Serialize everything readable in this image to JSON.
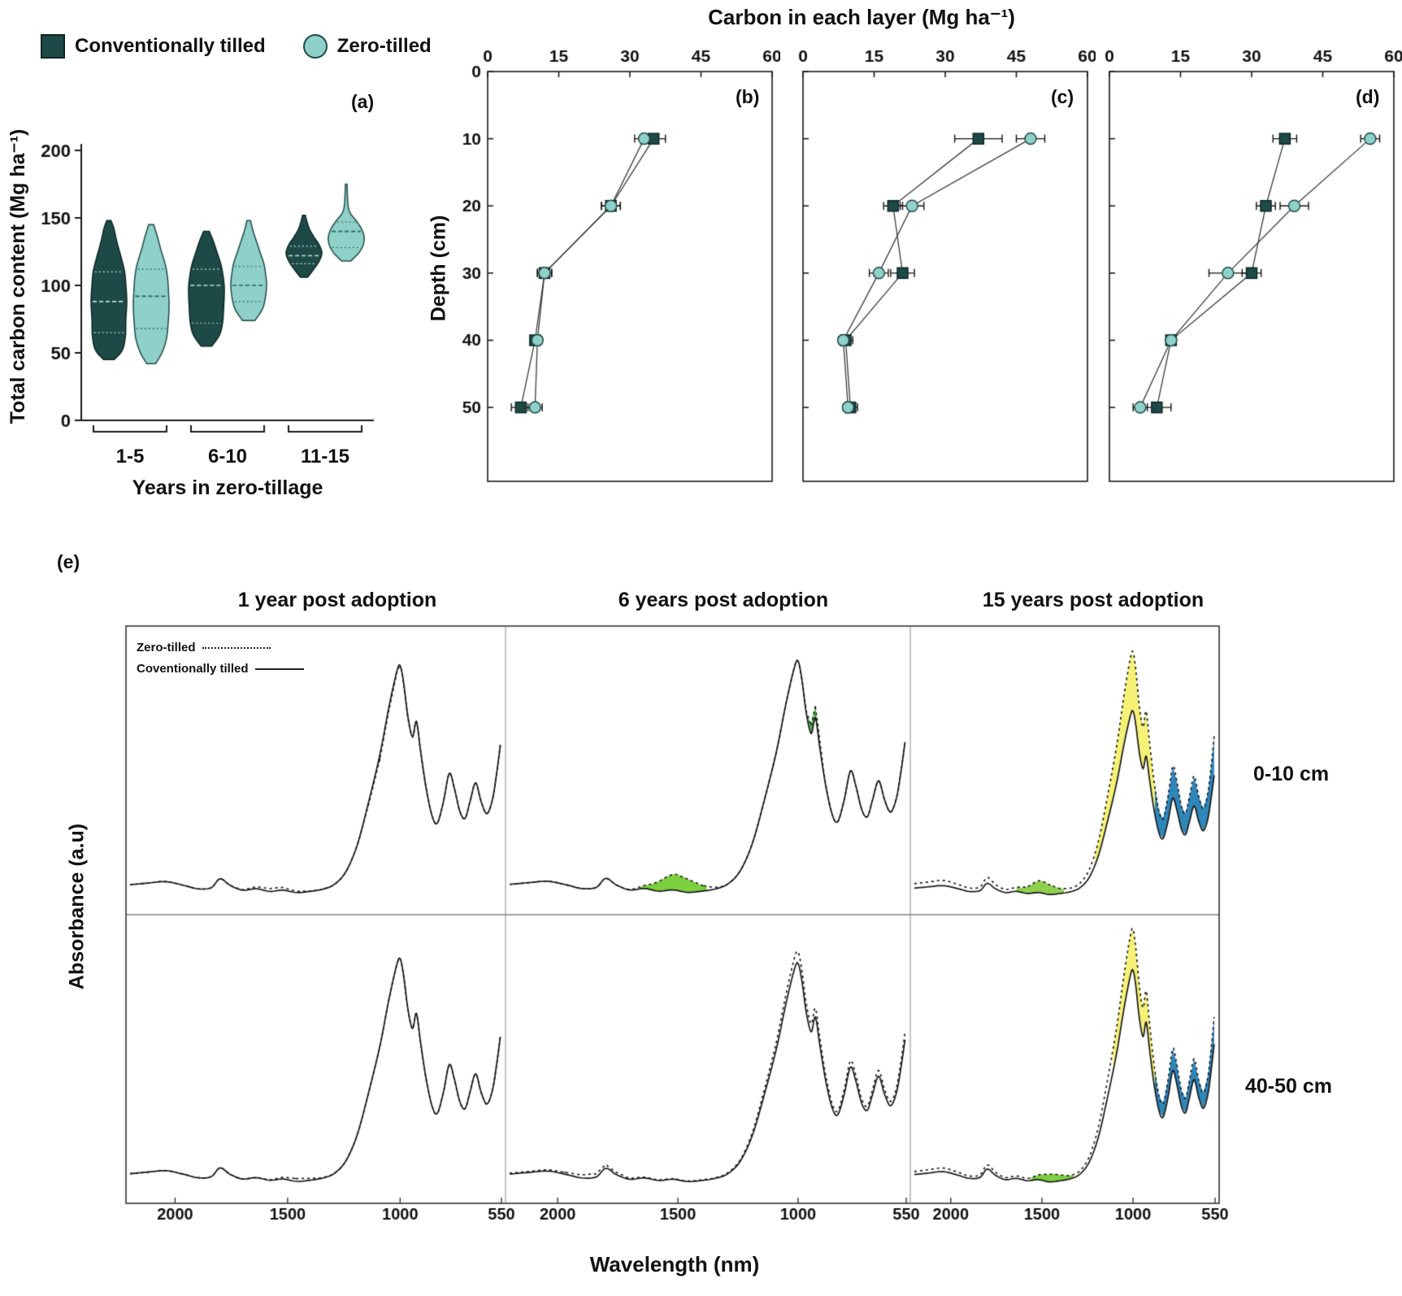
{
  "legend": {
    "ct": "Conventionally tilled",
    "zt": "Zero-tilled"
  },
  "top_title": "Carbon in each layer (Mg ha⁻¹)",
  "colors": {
    "series": {
      "ct": {
        "fill": "#1d4a46",
        "edge": "#0d2523",
        "dash": "#c3ddd9"
      },
      "zt": {
        "fill": "#8fd0c8",
        "edge": "#1d4a46",
        "dash": "#2b5f59"
      }
    },
    "axis": "#1a1a1a",
    "spectra_line": "#181818"
  },
  "chart_data": [
    {
      "id": "violin",
      "type": "violin",
      "panel": "(a)",
      "ylabel": "Total carbon content (Mg ha⁻¹)",
      "xlabel": "Years in zero-tillage",
      "ylim": [
        0,
        200
      ],
      "yticks": [
        0,
        50,
        100,
        150,
        200
      ],
      "groups": [
        {
          "label": "1-5",
          "violins": [
            {
              "series": "ct",
              "quartiles": [
                65,
                88,
                110
              ],
              "profile": [
                [
                  45,
                  0.3
                ],
                [
                  52,
                  0.75
                ],
                [
                  62,
                  0.92
                ],
                [
                  75,
                  0.95
                ],
                [
                  88,
                  1
                ],
                [
                  100,
                  0.95
                ],
                [
                  110,
                  0.88
                ],
                [
                  120,
                  0.7
                ],
                [
                  132,
                  0.45
                ],
                [
                  142,
                  0.28
                ],
                [
                  148,
                  0.12
                ]
              ]
            },
            {
              "series": "zt",
              "quartiles": [
                68,
                92,
                112
              ],
              "profile": [
                [
                  42,
                  0.25
                ],
                [
                  50,
                  0.6
                ],
                [
                  60,
                  0.85
                ],
                [
                  72,
                  0.95
                ],
                [
                  85,
                  1
                ],
                [
                  95,
                  0.97
                ],
                [
                  105,
                  0.92
                ],
                [
                  115,
                  0.8
                ],
                [
                  126,
                  0.55
                ],
                [
                  136,
                  0.35
                ],
                [
                  145,
                  0.14
                ]
              ]
            }
          ]
        },
        {
          "label": "6-10",
          "violins": [
            {
              "series": "ct",
              "quartiles": [
                72,
                100,
                112
              ],
              "profile": [
                [
                  55,
                  0.3
                ],
                [
                  63,
                  0.72
                ],
                [
                  72,
                  0.9
                ],
                [
                  85,
                  0.97
                ],
                [
                  98,
                  1
                ],
                [
                  108,
                  0.92
                ],
                [
                  116,
                  0.8
                ],
                [
                  125,
                  0.58
                ],
                [
                  133,
                  0.38
                ],
                [
                  140,
                  0.16
                ]
              ]
            },
            {
              "series": "zt",
              "quartiles": [
                88,
                100,
                114
              ],
              "profile": [
                [
                  74,
                  0.35
                ],
                [
                  82,
                  0.75
                ],
                [
                  90,
                  0.92
                ],
                [
                  100,
                  1
                ],
                [
                  108,
                  0.95
                ],
                [
                  116,
                  0.85
                ],
                [
                  124,
                  0.65
                ],
                [
                  132,
                  0.45
                ],
                [
                  140,
                  0.25
                ],
                [
                  148,
                  0.1
                ]
              ]
            }
          ]
        },
        {
          "label": "11-15",
          "violins": [
            {
              "series": "ct",
              "quartiles": [
                116,
                122,
                129
              ],
              "profile": [
                [
                  106,
                  0.2
                ],
                [
                  112,
                  0.55
                ],
                [
                  118,
                  0.85
                ],
                [
                  124,
                  1
                ],
                [
                  130,
                  0.85
                ],
                [
                  136,
                  0.55
                ],
                [
                  142,
                  0.3
                ],
                [
                  148,
                  0.15
                ],
                [
                  152,
                  0.08
                ]
              ]
            },
            {
              "series": "zt",
              "quartiles": [
                128,
                140,
                147
              ],
              "profile": [
                [
                  118,
                  0.25
                ],
                [
                  124,
                  0.7
                ],
                [
                  130,
                  0.95
                ],
                [
                  136,
                  1
                ],
                [
                  142,
                  0.85
                ],
                [
                  148,
                  0.55
                ],
                [
                  153,
                  0.25
                ],
                [
                  158,
                  0.12
                ],
                [
                  166,
                  0.07
                ],
                [
                  175,
                  0.05
                ]
              ]
            }
          ]
        }
      ]
    },
    {
      "id": "depth-b",
      "type": "scatter-depth",
      "panel": "(b)",
      "ylabel": "Depth (cm)",
      "xlim": [
        0,
        60
      ],
      "xticks": [
        0,
        15,
        30,
        45,
        60
      ],
      "ylim": [
        0,
        61
      ],
      "yticks": [
        0,
        10,
        20,
        30,
        40,
        50
      ],
      "show_depth_labels": true,
      "depths": [
        10,
        20,
        30,
        40,
        50
      ],
      "series": [
        {
          "name": "Conventionally tilled",
          "series": "ct",
          "marker": "square",
          "values": [
            35,
            26,
            12,
            10,
            7
          ],
          "errors": [
            2.5,
            2,
            1.5,
            1,
            2
          ]
        },
        {
          "name": "Zero-tilled",
          "series": "zt",
          "marker": "circle",
          "values": [
            33,
            26,
            12,
            10.5,
            10
          ],
          "errors": [
            2,
            2,
            1.5,
            1,
            1.5
          ]
        }
      ]
    },
    {
      "id": "depth-c",
      "type": "scatter-depth",
      "panel": "(c)",
      "xlim": [
        0,
        60
      ],
      "xticks": [
        0,
        15,
        30,
        45,
        60
      ],
      "ylim": [
        0,
        61
      ],
      "yticks": [
        0,
        10,
        20,
        30,
        40,
        50
      ],
      "show_depth_labels": false,
      "depths": [
        10,
        20,
        30,
        40,
        50
      ],
      "series": [
        {
          "name": "Conventionally tilled",
          "series": "ct",
          "marker": "square",
          "values": [
            37,
            19,
            21,
            9,
            10
          ],
          "errors": [
            5,
            2,
            2.5,
            1.5,
            1.5
          ]
        },
        {
          "name": "Zero-tilled",
          "series": "zt",
          "marker": "circle",
          "values": [
            48,
            23,
            16,
            8.5,
            9.5
          ],
          "errors": [
            3,
            2.5,
            2,
            1,
            1
          ]
        }
      ]
    },
    {
      "id": "depth-d",
      "type": "scatter-depth",
      "panel": "(d)",
      "xlim": [
        0,
        60
      ],
      "xticks": [
        0,
        15,
        30,
        45,
        60
      ],
      "ylim": [
        0,
        61
      ],
      "yticks": [
        0,
        10,
        20,
        30,
        40,
        50
      ],
      "show_depth_labels": false,
      "depths": [
        10,
        20,
        30,
        40,
        50
      ],
      "series": [
        {
          "name": "Conventionally tilled",
          "series": "ct",
          "marker": "square",
          "values": [
            37,
            33,
            30,
            13,
            10
          ],
          "errors": [
            2.5,
            2,
            2,
            1,
            3
          ]
        },
        {
          "name": "Zero-tilled",
          "series": "zt",
          "marker": "circle",
          "values": [
            55,
            39,
            25,
            13,
            6.5
          ],
          "errors": [
            2,
            3,
            4,
            1,
            1.5
          ]
        }
      ]
    },
    {
      "id": "spectra",
      "type": "line-spectra",
      "panel": "(e)",
      "xlabel": "Wavelength (nm)",
      "ylabel": "Absorbance (a.u)",
      "xlim": [
        2200,
        550
      ],
      "xticks": [
        2000,
        1500,
        1000,
        550
      ],
      "legend": {
        "zt": "Zero-tilled",
        "ct": "Coventionally tilled"
      },
      "columns": [
        {
          "title": "1 year post adoption"
        },
        {
          "title": "6 years post adoption"
        },
        {
          "title": "15 years post adoption"
        }
      ],
      "rows": [
        {
          "label": "0-10 cm"
        },
        {
          "label": "40-50 cm"
        }
      ],
      "base_curve": [
        [
          2200,
          0.075
        ],
        [
          2120,
          0.082
        ],
        [
          2040,
          0.088
        ],
        [
          1960,
          0.072
        ],
        [
          1900,
          0.058
        ],
        [
          1840,
          0.062
        ],
        [
          1800,
          0.1
        ],
        [
          1755,
          0.072
        ],
        [
          1700,
          0.052
        ],
        [
          1640,
          0.058
        ],
        [
          1580,
          0.047
        ],
        [
          1520,
          0.052
        ],
        [
          1460,
          0.042
        ],
        [
          1400,
          0.047
        ],
        [
          1340,
          0.057
        ],
        [
          1290,
          0.078
        ],
        [
          1240,
          0.132
        ],
        [
          1190,
          0.245
        ],
        [
          1140,
          0.425
        ],
        [
          1090,
          0.625
        ],
        [
          1050,
          0.825
        ],
        [
          1015,
          0.975
        ],
        [
          1000,
          1
        ],
        [
          985,
          0.93
        ],
        [
          965,
          0.78
        ],
        [
          945,
          0.7
        ],
        [
          928,
          0.765
        ],
        [
          910,
          0.645
        ],
        [
          885,
          0.485
        ],
        [
          858,
          0.365
        ],
        [
          835,
          0.335
        ],
        [
          808,
          0.425
        ],
        [
          782,
          0.545
        ],
        [
          760,
          0.485
        ],
        [
          735,
          0.385
        ],
        [
          712,
          0.355
        ],
        [
          690,
          0.425
        ],
        [
          665,
          0.505
        ],
        [
          640,
          0.425
        ],
        [
          615,
          0.375
        ],
        [
          590,
          0.435
        ],
        [
          570,
          0.555
        ],
        [
          555,
          0.665
        ]
      ],
      "subplots": [
        {
          "row": 0,
          "col": 0,
          "solid": {
            "scale": 1.04
          },
          "dashed": {
            "scale": 1.04,
            "bumps": [
              [
                1560,
                110,
                0.013
              ],
              [
                1090,
                70,
                -0.018
              ]
            ]
          },
          "highlights": []
        },
        {
          "row": 0,
          "col": 1,
          "solid": {
            "scale": 1.06
          },
          "dashed": {
            "scale": 1.06,
            "bumps": [
              [
                1505,
                105,
                0.07
              ],
              [
                930,
                28,
                0.05
              ]
            ]
          },
          "highlights": [
            [
              1660,
              1380,
              "#7ccf3f"
            ],
            [
              958,
              902,
              "#4eb04b"
            ]
          ]
        },
        {
          "row": 0,
          "col": 2,
          "solid": {
            "scale": 0.84
          },
          "dashed": {
            "scale": 1.1,
            "bumps": [
              [
                1500,
                85,
                0.04
              ]
            ]
          },
          "highlights": [
            [
              1640,
              1380,
              "#8fd14f"
            ],
            [
              1210,
              880,
              "#f4f176"
            ],
            [
              880,
              555,
              "#2f86b9"
            ]
          ]
        },
        {
          "row": 1,
          "col": 0,
          "solid": {
            "scale": 1.02
          },
          "dashed": {
            "scale": 1.02,
            "bumps": [
              [
                1460,
                90,
                0.012
              ]
            ]
          },
          "highlights": []
        },
        {
          "row": 1,
          "col": 1,
          "solid": {
            "scale": 1.0
          },
          "dashed": {
            "scale": 1.05,
            "bumps": [
              [
                1850,
                120,
                0.012
              ]
            ]
          },
          "highlights": []
        },
        {
          "row": 1,
          "col": 2,
          "solid": {
            "scale": 0.97
          },
          "dashed": {
            "scale": 1.15,
            "bumps": [
              [
                1450,
                80,
                0.025
              ]
            ]
          },
          "highlights": [
            [
              1560,
              1330,
              "#7ccf3f"
            ],
            [
              1110,
              880,
              "#f4f176"
            ],
            [
              880,
              555,
              "#2f86b9"
            ]
          ]
        }
      ]
    }
  ]
}
